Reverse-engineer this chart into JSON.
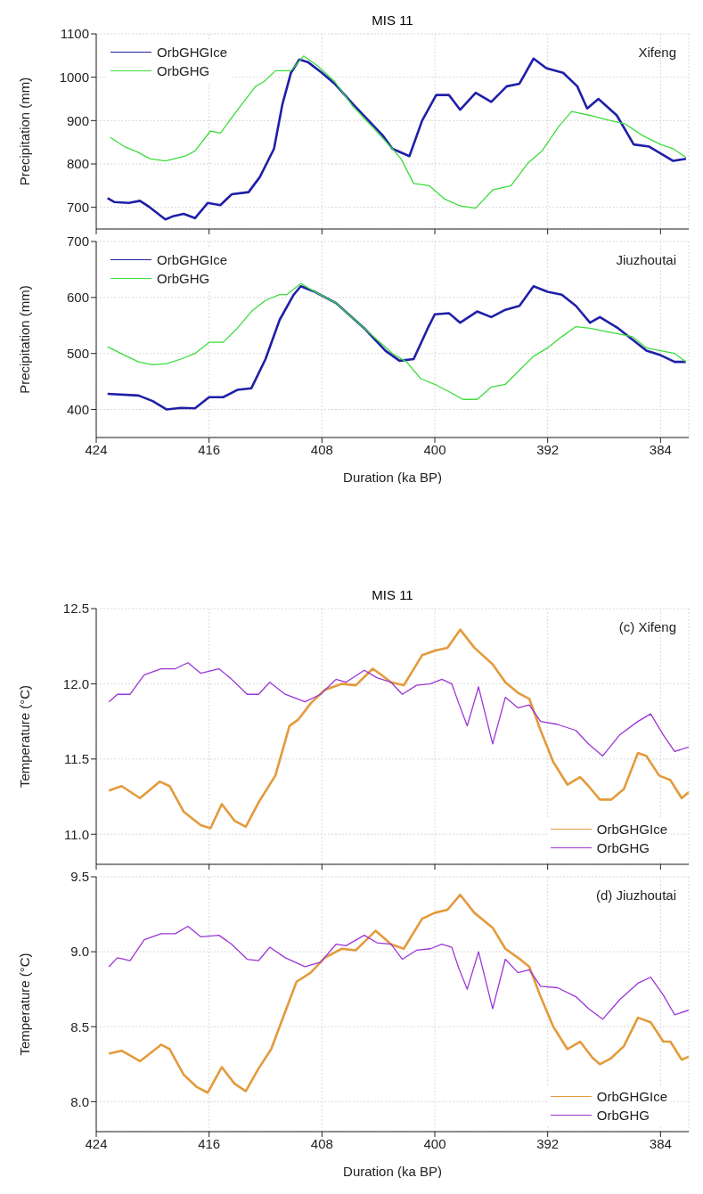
{
  "chart_data": [
    {
      "type": "line",
      "title": "MIS 11",
      "ylabel": "Precipitation (mm)",
      "annotations": [
        "Xifeng"
      ],
      "xlim": [
        424,
        382
      ],
      "xticks": [
        424,
        416,
        408,
        400,
        392,
        384
      ],
      "ylim": [
        650,
        1100
      ],
      "yticks": [
        700,
        800,
        900,
        1000,
        1100
      ],
      "grid": true,
      "legend": "top left",
      "tick_labels": "y",
      "series": [
        {
          "name": "OrbGHGIce",
          "color": "#1f1fa8",
          "x": [
            423.2,
            422.7,
            421.7,
            420.9,
            420.2,
            419.1,
            418.5,
            417.8,
            417.0,
            416.1,
            415.2,
            414.4,
            413.2,
            412.4,
            411.4,
            410.8,
            410.2,
            409.6,
            409.0,
            408.0,
            407.1,
            405.8,
            404.6,
            403.7,
            403.0,
            401.8,
            400.9,
            399.9,
            399.0,
            398.2,
            397.1,
            396.0,
            394.9,
            394.0,
            393.0,
            392.1,
            390.9,
            389.9,
            389.2,
            388.4,
            387.1,
            385.9,
            384.8,
            383.1,
            382.2
          ],
          "values": [
            721,
            712,
            710,
            715,
            700,
            672,
            680,
            685,
            675,
            710,
            705,
            730,
            735,
            770,
            835,
            938,
            1010,
            1041,
            1035,
            1010,
            985,
            938,
            897,
            866,
            835,
            818,
            900,
            959,
            959,
            925,
            964,
            943,
            979,
            985,
            1043,
            1021,
            1010,
            979,
            928,
            950,
            912,
            845,
            840,
            807,
            812
          ]
        },
        {
          "name": "OrbGHG",
          "color": "#3ddc3d",
          "x": [
            423.0,
            422.0,
            421.1,
            420.2,
            419.1,
            417.7,
            417.0,
            415.9,
            415.2,
            413.9,
            412.7,
            412.1,
            411.3,
            410.2,
            409.3,
            408.3,
            407.1,
            405.8,
            404.3,
            403.0,
            402.4,
            401.5,
            400.4,
            399.3,
            398.2,
            397.1,
            395.9,
            394.6,
            393.4,
            392.4,
            391.2,
            390.3,
            389.0,
            387.8,
            386.5,
            385.3,
            384.0,
            383.1,
            382.2
          ],
          "values": [
            861,
            840,
            828,
            812,
            807,
            818,
            830,
            876,
            871,
            928,
            979,
            990,
            1015,
            1015,
            1049,
            1026,
            990,
            933,
            881,
            835,
            812,
            755,
            750,
            719,
            703,
            698,
            740,
            750,
            802,
            830,
            887,
            921,
            912,
            902,
            892,
            866,
            845,
            835,
            815
          ]
        }
      ]
    },
    {
      "type": "line",
      "xlabel": "Duration (ka BP)",
      "ylabel": "Precipitation (mm)",
      "annotations": [
        "Jiuzhoutai"
      ],
      "xlim": [
        424,
        382
      ],
      "xticks": [
        424,
        416,
        408,
        400,
        392,
        384
      ],
      "ylim": [
        350,
        700
      ],
      "yticks": [
        400,
        500,
        600,
        700
      ],
      "grid": true,
      "legend": "top left",
      "series": [
        {
          "name": "OrbGHGIce",
          "color": "#1f1fa8",
          "x": [
            423.2,
            421,
            420,
            419,
            418,
            417,
            416,
            415,
            414,
            413,
            412,
            411,
            410,
            409.5,
            408.5,
            407,
            405,
            403.5,
            402.5,
            401.5,
            400.5,
            400,
            399,
            398.2,
            397,
            396,
            395,
            394,
            393,
            392,
            391,
            390,
            389,
            388.3,
            387,
            386,
            385,
            384,
            383,
            382.2
          ],
          "values": [
            428,
            425,
            415,
            400,
            403,
            402,
            422,
            422,
            435,
            438,
            490,
            560,
            605,
            620,
            610,
            590,
            545,
            505,
            487,
            490,
            545,
            570,
            572,
            555,
            575,
            565,
            578,
            585,
            620,
            610,
            605,
            585,
            555,
            565,
            545,
            525,
            505,
            497,
            485,
            485
          ]
        },
        {
          "name": "OrbGHG",
          "color": "#3ddc3d",
          "x": [
            423.2,
            422,
            421,
            420,
            419,
            418,
            417,
            416,
            415,
            414,
            413,
            412,
            411,
            410.5,
            409.5,
            408.5,
            407,
            405,
            403,
            402,
            401,
            400,
            399,
            398,
            397,
            396,
            395,
            394,
            393,
            392,
            391,
            390,
            389,
            388,
            387,
            386,
            385,
            384,
            383,
            382.2
          ],
          "values": [
            512,
            497,
            485,
            480,
            482,
            490,
            500,
            520,
            520,
            545,
            575,
            595,
            605,
            605,
            625,
            610,
            590,
            545,
            500,
            485,
            455,
            445,
            432,
            418,
            418,
            440,
            445,
            470,
            495,
            510,
            530,
            548,
            545,
            540,
            535,
            530,
            510,
            505,
            500,
            485
          ]
        }
      ]
    },
    {
      "type": "line",
      "title": "MIS 11",
      "ylabel": "Temperature (°C)",
      "annotations": [
        "(c) Xifeng"
      ],
      "xlim": [
        424,
        382
      ],
      "xticks": [
        424,
        416,
        408,
        400,
        392,
        384
      ],
      "ylim": [
        10.8,
        12.5
      ],
      "yticks": [
        {
          "value": 11,
          "label": "11.0"
        },
        11.5,
        {
          "value": 12,
          "label": "12.0"
        },
        12.5
      ],
      "grid": true,
      "legend": "bottom right",
      "tick_labels": "y",
      "series": [
        {
          "name": "OrbGHGIce",
          "color": "#e49a3c",
          "x": [
            423.1,
            422.2,
            420.9,
            419.5,
            418.8,
            417.8,
            416.6,
            415.9,
            415.1,
            414.2,
            413.4,
            412.5,
            411.3,
            410.3,
            409.7,
            408.8,
            407.8,
            406.6,
            405.6,
            404.4,
            403.8,
            403.1,
            402.2,
            400.9,
            400.0,
            399.1,
            398.2,
            397.2,
            395.9,
            395.0,
            394.1,
            393.3,
            392.5,
            391.6,
            390.6,
            389.7,
            389.1,
            388.3,
            387.5,
            386.6,
            385.6,
            385.0,
            384.1,
            383.3,
            382.5,
            382.0
          ],
          "values": [
            11.29,
            11.32,
            11.24,
            11.35,
            11.32,
            11.15,
            11.06,
            11.04,
            11.2,
            11.09,
            11.05,
            11.21,
            11.39,
            11.72,
            11.76,
            11.87,
            11.96,
            12.0,
            11.99,
            12.1,
            12.06,
            12.01,
            11.99,
            12.19,
            12.22,
            12.24,
            12.36,
            12.24,
            12.13,
            12.01,
            11.94,
            11.9,
            11.69,
            11.48,
            11.33,
            11.38,
            11.32,
            11.23,
            11.23,
            11.3,
            11.54,
            11.52,
            11.39,
            11.36,
            11.24,
            11.28
          ]
        },
        {
          "name": "OrbGHG",
          "color": "#9b35d6",
          "x": [
            423.1,
            422.5,
            421.6,
            420.6,
            419.4,
            418.4,
            417.5,
            416.6,
            415.3,
            414.4,
            413.3,
            412.5,
            411.7,
            410.6,
            409.2,
            408.1,
            407.0,
            406.3,
            405.0,
            404.1,
            403.1,
            402.3,
            401.3,
            400.3,
            399.5,
            398.8,
            398.3,
            397.7,
            396.9,
            395.9,
            395.0,
            394.1,
            393.3,
            392.5,
            391.3,
            390.0,
            389.1,
            388.1,
            386.9,
            385.6,
            384.7,
            383.8,
            383.0,
            382.0
          ],
          "values": [
            11.88,
            11.93,
            11.93,
            12.06,
            12.1,
            12.1,
            12.14,
            12.07,
            12.1,
            12.03,
            11.93,
            11.93,
            12.01,
            11.93,
            11.88,
            11.93,
            12.03,
            12.01,
            12.09,
            12.04,
            12.01,
            11.93,
            11.99,
            12.0,
            12.03,
            12.0,
            11.87,
            11.72,
            11.98,
            11.6,
            11.91,
            11.84,
            11.86,
            11.75,
            11.73,
            11.69,
            11.6,
            11.52,
            11.66,
            11.75,
            11.8,
            11.66,
            11.55,
            11.58
          ]
        }
      ]
    },
    {
      "type": "line",
      "xlabel": "Duration (ka BP)",
      "ylabel": "Temperature (°C)",
      "annotations": [
        "(d) Jiuzhoutai"
      ],
      "xlim": [
        424,
        382
      ],
      "xticks": [
        424,
        416,
        408,
        400,
        392,
        384
      ],
      "ylim": [
        7.8,
        9.5
      ],
      "yticks": [
        {
          "value": 8,
          "label": "8.0"
        },
        8.5,
        {
          "value": 9,
          "label": "9.0"
        },
        9.5
      ],
      "grid": true,
      "legend": "bottom right",
      "series": [
        {
          "name": "OrbGHGIce",
          "color": "#e49a3c",
          "x": [
            423.1,
            422.2,
            420.9,
            419.4,
            418.8,
            417.8,
            416.9,
            416.1,
            415.1,
            414.2,
            413.4,
            412.5,
            411.6,
            410.8,
            409.8,
            408.8,
            407.8,
            406.6,
            405.6,
            404.2,
            403.1,
            402.2,
            400.9,
            400.0,
            399.1,
            398.2,
            397.2,
            395.9,
            395.0,
            394.1,
            393.3,
            392.5,
            391.6,
            390.6,
            389.7,
            388.8,
            388.3,
            387.5,
            386.6,
            385.6,
            384.7,
            383.8,
            383.3,
            382.5,
            382.0
          ],
          "values": [
            8.32,
            8.34,
            8.27,
            8.38,
            8.35,
            8.18,
            8.1,
            8.06,
            8.23,
            8.12,
            8.07,
            8.22,
            8.35,
            8.55,
            8.8,
            8.86,
            8.96,
            9.02,
            9.01,
            9.14,
            9.05,
            9.02,
            9.22,
            9.26,
            9.28,
            9.38,
            9.26,
            9.16,
            9.02,
            8.96,
            8.9,
            8.7,
            8.5,
            8.35,
            8.4,
            8.29,
            8.25,
            8.29,
            8.37,
            8.56,
            8.53,
            8.4,
            8.4,
            8.28,
            8.3
          ]
        },
        {
          "name": "OrbGHG",
          "color": "#9b35d6",
          "x": [
            423.1,
            422.5,
            421.6,
            420.6,
            419.4,
            418.4,
            417.5,
            416.6,
            415.3,
            414.4,
            413.3,
            412.5,
            411.7,
            410.6,
            409.2,
            408.1,
            407.0,
            406.3,
            405.0,
            404.1,
            403.1,
            402.3,
            401.3,
            400.3,
            399.5,
            398.8,
            398.3,
            397.7,
            396.9,
            395.9,
            395.0,
            394.1,
            393.3,
            392.5,
            391.3,
            390.0,
            389.1,
            388.1,
            386.9,
            385.6,
            384.7,
            383.8,
            383.0,
            382.0
          ],
          "values": [
            8.9,
            8.96,
            8.94,
            9.08,
            9.12,
            9.12,
            9.17,
            9.1,
            9.11,
            9.05,
            8.95,
            8.94,
            9.03,
            8.96,
            8.9,
            8.93,
            9.05,
            9.04,
            9.11,
            9.06,
            9.05,
            8.95,
            9.01,
            9.02,
            9.05,
            9.03,
            8.89,
            8.75,
            9.0,
            8.62,
            8.95,
            8.86,
            8.88,
            8.77,
            8.76,
            8.7,
            8.62,
            8.55,
            8.68,
            8.79,
            8.83,
            8.71,
            8.58,
            8.61
          ]
        }
      ]
    }
  ]
}
